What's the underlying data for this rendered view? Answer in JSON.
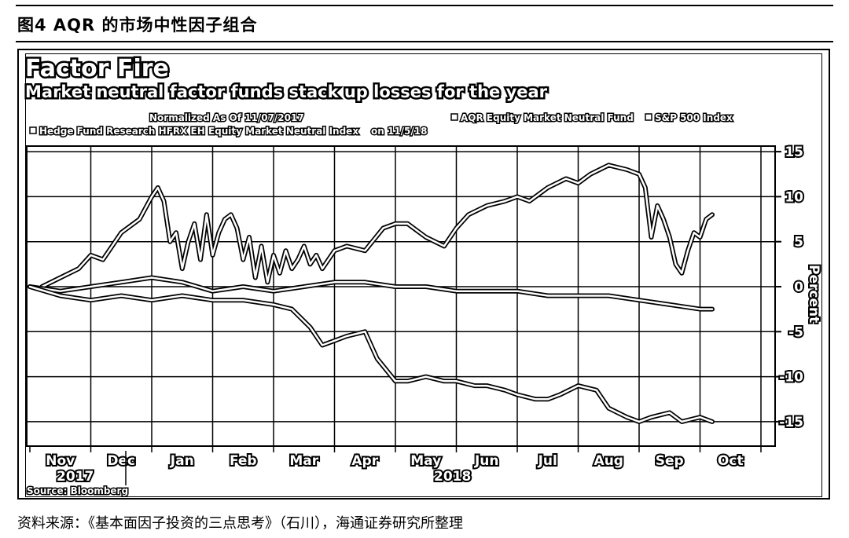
{
  "figure": {
    "caption": "图4  AQR 的市场中性因子组合",
    "source_note": "资料来源：《基本面因子投资的三点思考》（石川），海通证券研究所整理"
  },
  "chart_data": {
    "type": "line",
    "title": "Factor Fire",
    "subtitle": "Market neutral factor funds stack up losses for the year",
    "normalized_note": "Normalized As Of 11/07/2017",
    "legend": {
      "aqr": "AQR Equity Market Neutral Fund",
      "spx": "S&P 500 Index",
      "hfr": "Hedge Fund Research HFRX EH Equity Market Neutral Index",
      "hfr_suffix": "on 11/5/18"
    },
    "ylabel": "Percent",
    "ylim": [
      -15,
      15
    ],
    "yticks": [
      "15",
      "10",
      "5",
      "0",
      "-5",
      "-10",
      "-15"
    ],
    "ytick_values": [
      15,
      10,
      5,
      0,
      -5,
      -10,
      -15
    ],
    "months": [
      "Nov",
      "Dec",
      "Jan",
      "Feb",
      "Mar",
      "Apr",
      "May",
      "Jun",
      "Jul",
      "Aug",
      "Sep",
      "Oct"
    ],
    "years": [
      "2017",
      "2018"
    ],
    "source": "Source: Bloomberg",
    "grid": true,
    "legend_position": "top-left",
    "x_unit": "months since 2017-11-01",
    "series": [
      {
        "name": "S&P 500 Index",
        "x": [
          0.2,
          0.5,
          0.8,
          1.0,
          1.2,
          1.5,
          1.8,
          2.0,
          2.1,
          2.2,
          2.3,
          2.4,
          2.5,
          2.6,
          2.7,
          2.8,
          2.9,
          3.0,
          3.1,
          3.2,
          3.3,
          3.4,
          3.5,
          3.6,
          3.7,
          3.8,
          3.9,
          4.0,
          4.1,
          4.2,
          4.3,
          4.4,
          4.5,
          4.6,
          4.7,
          4.8,
          4.9,
          5.0,
          5.2,
          5.5,
          5.8,
          6.0,
          6.2,
          6.5,
          6.8,
          7.0,
          7.2,
          7.5,
          7.8,
          8.0,
          8.2,
          8.5,
          8.8,
          9.0,
          9.2,
          9.5,
          9.8,
          10.0,
          10.1,
          10.2,
          10.3,
          10.4,
          10.5,
          10.6,
          10.7,
          10.8,
          10.9,
          11.0,
          11.1,
          11.2
        ],
        "values": [
          0.0,
          1.0,
          2.0,
          3.5,
          3.0,
          6.0,
          7.5,
          10.0,
          11.0,
          9.5,
          5.0,
          6.0,
          2.0,
          5.0,
          7.0,
          3.0,
          8.0,
          3.5,
          6.0,
          7.5,
          8.0,
          6.5,
          3.0,
          5.5,
          1.0,
          4.5,
          0.5,
          3.5,
          1.5,
          4.0,
          2.0,
          3.0,
          4.5,
          2.5,
          3.5,
          2.0,
          3.0,
          4.0,
          4.5,
          4.0,
          6.5,
          7.0,
          7.0,
          5.5,
          4.5,
          6.5,
          8.0,
          9.0,
          9.5,
          10.0,
          9.5,
          11.0,
          12.0,
          11.5,
          12.5,
          13.5,
          13.0,
          12.5,
          11.0,
          5.5,
          9.0,
          7.5,
          5.5,
          2.5,
          1.5,
          4.0,
          6.0,
          5.5,
          7.5,
          8.0
        ]
      },
      {
        "name": "Hedge Fund Research HFRX EH Equity Market Neutral Index",
        "x": [
          0.0,
          0.5,
          1.0,
          1.5,
          2.0,
          2.5,
          3.0,
          3.5,
          4.0,
          4.5,
          5.0,
          5.5,
          6.0,
          6.5,
          7.0,
          7.5,
          8.0,
          8.5,
          9.0,
          9.5,
          10.0,
          10.5,
          11.0,
          11.2
        ],
        "values": [
          0.0,
          -0.5,
          0.0,
          0.5,
          1.0,
          0.5,
          -0.5,
          0.0,
          -0.5,
          0.0,
          0.5,
          0.5,
          0.0,
          0.0,
          -0.5,
          -0.5,
          -0.5,
          -1.0,
          -1.0,
          -1.0,
          -1.5,
          -2.0,
          -2.5,
          -2.5
        ]
      },
      {
        "name": "AQR Equity Market Neutral Fund",
        "x": [
          0.0,
          0.5,
          1.0,
          1.5,
          2.0,
          2.5,
          3.0,
          3.5,
          4.0,
          4.3,
          4.6,
          4.8,
          5.0,
          5.2,
          5.5,
          5.7,
          6.0,
          6.2,
          6.5,
          6.8,
          7.0,
          7.3,
          7.5,
          7.8,
          8.0,
          8.3,
          8.5,
          8.7,
          9.0,
          9.3,
          9.5,
          9.8,
          10.0,
          10.2,
          10.5,
          10.7,
          11.0,
          11.2
        ],
        "values": [
          0.0,
          -1.0,
          -1.5,
          -1.0,
          -1.5,
          -1.0,
          -1.5,
          -1.5,
          -2.0,
          -2.5,
          -4.5,
          -6.5,
          -6.0,
          -5.5,
          -5.0,
          -8.0,
          -10.5,
          -10.5,
          -10.0,
          -10.5,
          -10.5,
          -11.0,
          -11.0,
          -11.5,
          -12.0,
          -12.5,
          -12.5,
          -12.0,
          -11.0,
          -11.5,
          -13.5,
          -14.5,
          -15.0,
          -14.5,
          -14.0,
          -15.0,
          -14.5,
          -15.0
        ]
      }
    ]
  }
}
